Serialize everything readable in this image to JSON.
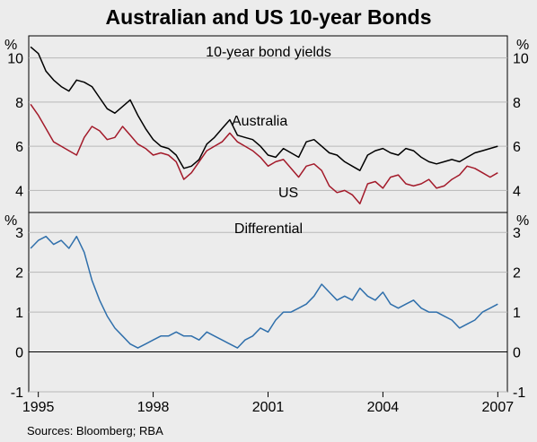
{
  "title": "Australian and US 10-year Bonds",
  "source": "Sources: Bloomberg; RBA",
  "colors": {
    "australia": "#000000",
    "us": "#a31a2a",
    "differential": "#2f6fab",
    "background": "#ececec",
    "grid": "#b8b8b8"
  },
  "chart_data": [
    {
      "type": "line",
      "title": "10-year bond yields",
      "unit": "%",
      "ylim": [
        3,
        11
      ],
      "yticks": [
        4,
        6,
        8,
        10
      ],
      "xlim": [
        1994.75,
        2007.25
      ],
      "xticks": [
        1995,
        1998,
        2001,
        2004,
        2007
      ],
      "xtick_labels": [
        "1995",
        "1998",
        "2001",
        "2004",
        "2007"
      ],
      "grid": true,
      "series": [
        {
          "name": "Australia",
          "color": "#000000",
          "x": [
            1994.8,
            1995.0,
            1995.2,
            1995.4,
            1995.6,
            1995.8,
            1996.0,
            1996.2,
            1996.4,
            1996.6,
            1996.8,
            1997.0,
            1997.2,
            1997.4,
            1997.6,
            1997.8,
            1998.0,
            1998.2,
            1998.4,
            1998.6,
            1998.8,
            1999.0,
            1999.2,
            1999.4,
            1999.6,
            1999.8,
            2000.0,
            2000.2,
            2000.4,
            2000.6,
            2000.8,
            2001.0,
            2001.2,
            2001.4,
            2001.6,
            2001.8,
            2002.0,
            2002.2,
            2002.4,
            2002.6,
            2002.8,
            2003.0,
            2003.2,
            2003.4,
            2003.6,
            2003.8,
            2004.0,
            2004.2,
            2004.4,
            2004.6,
            2004.8,
            2005.0,
            2005.2,
            2005.4,
            2005.6,
            2005.8,
            2006.0,
            2006.2,
            2006.4,
            2006.6,
            2006.8,
            2007.0
          ],
          "y": [
            10.5,
            10.2,
            9.4,
            9.0,
            8.7,
            8.5,
            9.0,
            8.9,
            8.7,
            8.2,
            7.7,
            7.5,
            7.8,
            8.1,
            7.4,
            6.8,
            6.3,
            6.0,
            5.9,
            5.6,
            5.0,
            5.1,
            5.4,
            6.1,
            6.4,
            6.8,
            7.2,
            6.5,
            6.4,
            6.3,
            6.0,
            5.6,
            5.5,
            5.9,
            5.7,
            5.5,
            6.2,
            6.3,
            6.0,
            5.7,
            5.6,
            5.3,
            5.1,
            4.9,
            5.6,
            5.8,
            5.9,
            5.7,
            5.6,
            5.9,
            5.8,
            5.5,
            5.3,
            5.2,
            5.3,
            5.4,
            5.3,
            5.5,
            5.7,
            5.8,
            5.9,
            6.0
          ]
        },
        {
          "name": "US",
          "color": "#a31a2a",
          "x": [
            1994.8,
            1995.0,
            1995.2,
            1995.4,
            1995.6,
            1995.8,
            1996.0,
            1996.2,
            1996.4,
            1996.6,
            1996.8,
            1997.0,
            1997.2,
            1997.4,
            1997.6,
            1997.8,
            1998.0,
            1998.2,
            1998.4,
            1998.6,
            1998.8,
            1999.0,
            1999.2,
            1999.4,
            1999.6,
            1999.8,
            2000.0,
            2000.2,
            2000.4,
            2000.6,
            2000.8,
            2001.0,
            2001.2,
            2001.4,
            2001.6,
            2001.8,
            2002.0,
            2002.2,
            2002.4,
            2002.6,
            2002.8,
            2003.0,
            2003.2,
            2003.4,
            2003.6,
            2003.8,
            2004.0,
            2004.2,
            2004.4,
            2004.6,
            2004.8,
            2005.0,
            2005.2,
            2005.4,
            2005.6,
            2005.8,
            2006.0,
            2006.2,
            2006.4,
            2006.6,
            2006.8,
            2007.0
          ],
          "y": [
            7.9,
            7.4,
            6.8,
            6.2,
            6.0,
            5.8,
            5.6,
            6.4,
            6.9,
            6.7,
            6.3,
            6.4,
            6.9,
            6.5,
            6.1,
            5.9,
            5.6,
            5.7,
            5.6,
            5.3,
            4.5,
            4.8,
            5.3,
            5.8,
            6.0,
            6.2,
            6.6,
            6.2,
            6.0,
            5.8,
            5.5,
            5.1,
            5.3,
            5.4,
            5.0,
            4.6,
            5.1,
            5.2,
            4.9,
            4.2,
            3.9,
            4.0,
            3.8,
            3.4,
            4.3,
            4.4,
            4.1,
            4.6,
            4.7,
            4.3,
            4.2,
            4.3,
            4.5,
            4.1,
            4.2,
            4.5,
            4.7,
            5.1,
            5.0,
            4.8,
            4.6,
            4.8
          ]
        }
      ],
      "annotations": [
        "Australia",
        "US"
      ]
    },
    {
      "type": "line",
      "title": "Differential",
      "unit": "%",
      "ylim": [
        -1,
        3.5
      ],
      "yticks": [
        -1,
        0,
        1,
        2,
        3
      ],
      "xlim": [
        1994.75,
        2007.25
      ],
      "xticks": [
        1995,
        1998,
        2001,
        2004,
        2007
      ],
      "xtick_labels": [
        "1995",
        "1998",
        "2001",
        "2004",
        "2007"
      ],
      "grid": true,
      "series": [
        {
          "color": "#2f6fab",
          "x": [
            1994.8,
            1995.0,
            1995.2,
            1995.4,
            1995.6,
            1995.8,
            1996.0,
            1996.2,
            1996.4,
            1996.6,
            1996.8,
            1997.0,
            1997.2,
            1997.4,
            1997.6,
            1997.8,
            1998.0,
            1998.2,
            1998.4,
            1998.6,
            1998.8,
            1999.0,
            1999.2,
            1999.4,
            1999.6,
            1999.8,
            2000.0,
            2000.2,
            2000.4,
            2000.6,
            2000.8,
            2001.0,
            2001.2,
            2001.4,
            2001.6,
            2001.8,
            2002.0,
            2002.2,
            2002.4,
            2002.6,
            2002.8,
            2003.0,
            2003.2,
            2003.4,
            2003.6,
            2003.8,
            2004.0,
            2004.2,
            2004.4,
            2004.6,
            2004.8,
            2005.0,
            2005.2,
            2005.4,
            2005.6,
            2005.8,
            2006.0,
            2006.2,
            2006.4,
            2006.6,
            2006.8,
            2007.0
          ],
          "y": [
            2.6,
            2.8,
            2.9,
            2.7,
            2.8,
            2.6,
            2.9,
            2.5,
            1.8,
            1.3,
            0.9,
            0.6,
            0.4,
            0.2,
            0.1,
            0.2,
            0.3,
            0.4,
            0.4,
            0.5,
            0.4,
            0.4,
            0.3,
            0.5,
            0.4,
            0.3,
            0.2,
            0.1,
            0.3,
            0.4,
            0.6,
            0.5,
            0.8,
            1.0,
            1.0,
            1.1,
            1.2,
            1.4,
            1.7,
            1.5,
            1.3,
            1.4,
            1.3,
            1.6,
            1.4,
            1.3,
            1.5,
            1.2,
            1.1,
            1.2,
            1.3,
            1.1,
            1.0,
            1.0,
            0.9,
            0.8,
            0.6,
            0.7,
            0.8,
            1.0,
            1.1,
            1.2
          ]
        }
      ]
    }
  ]
}
